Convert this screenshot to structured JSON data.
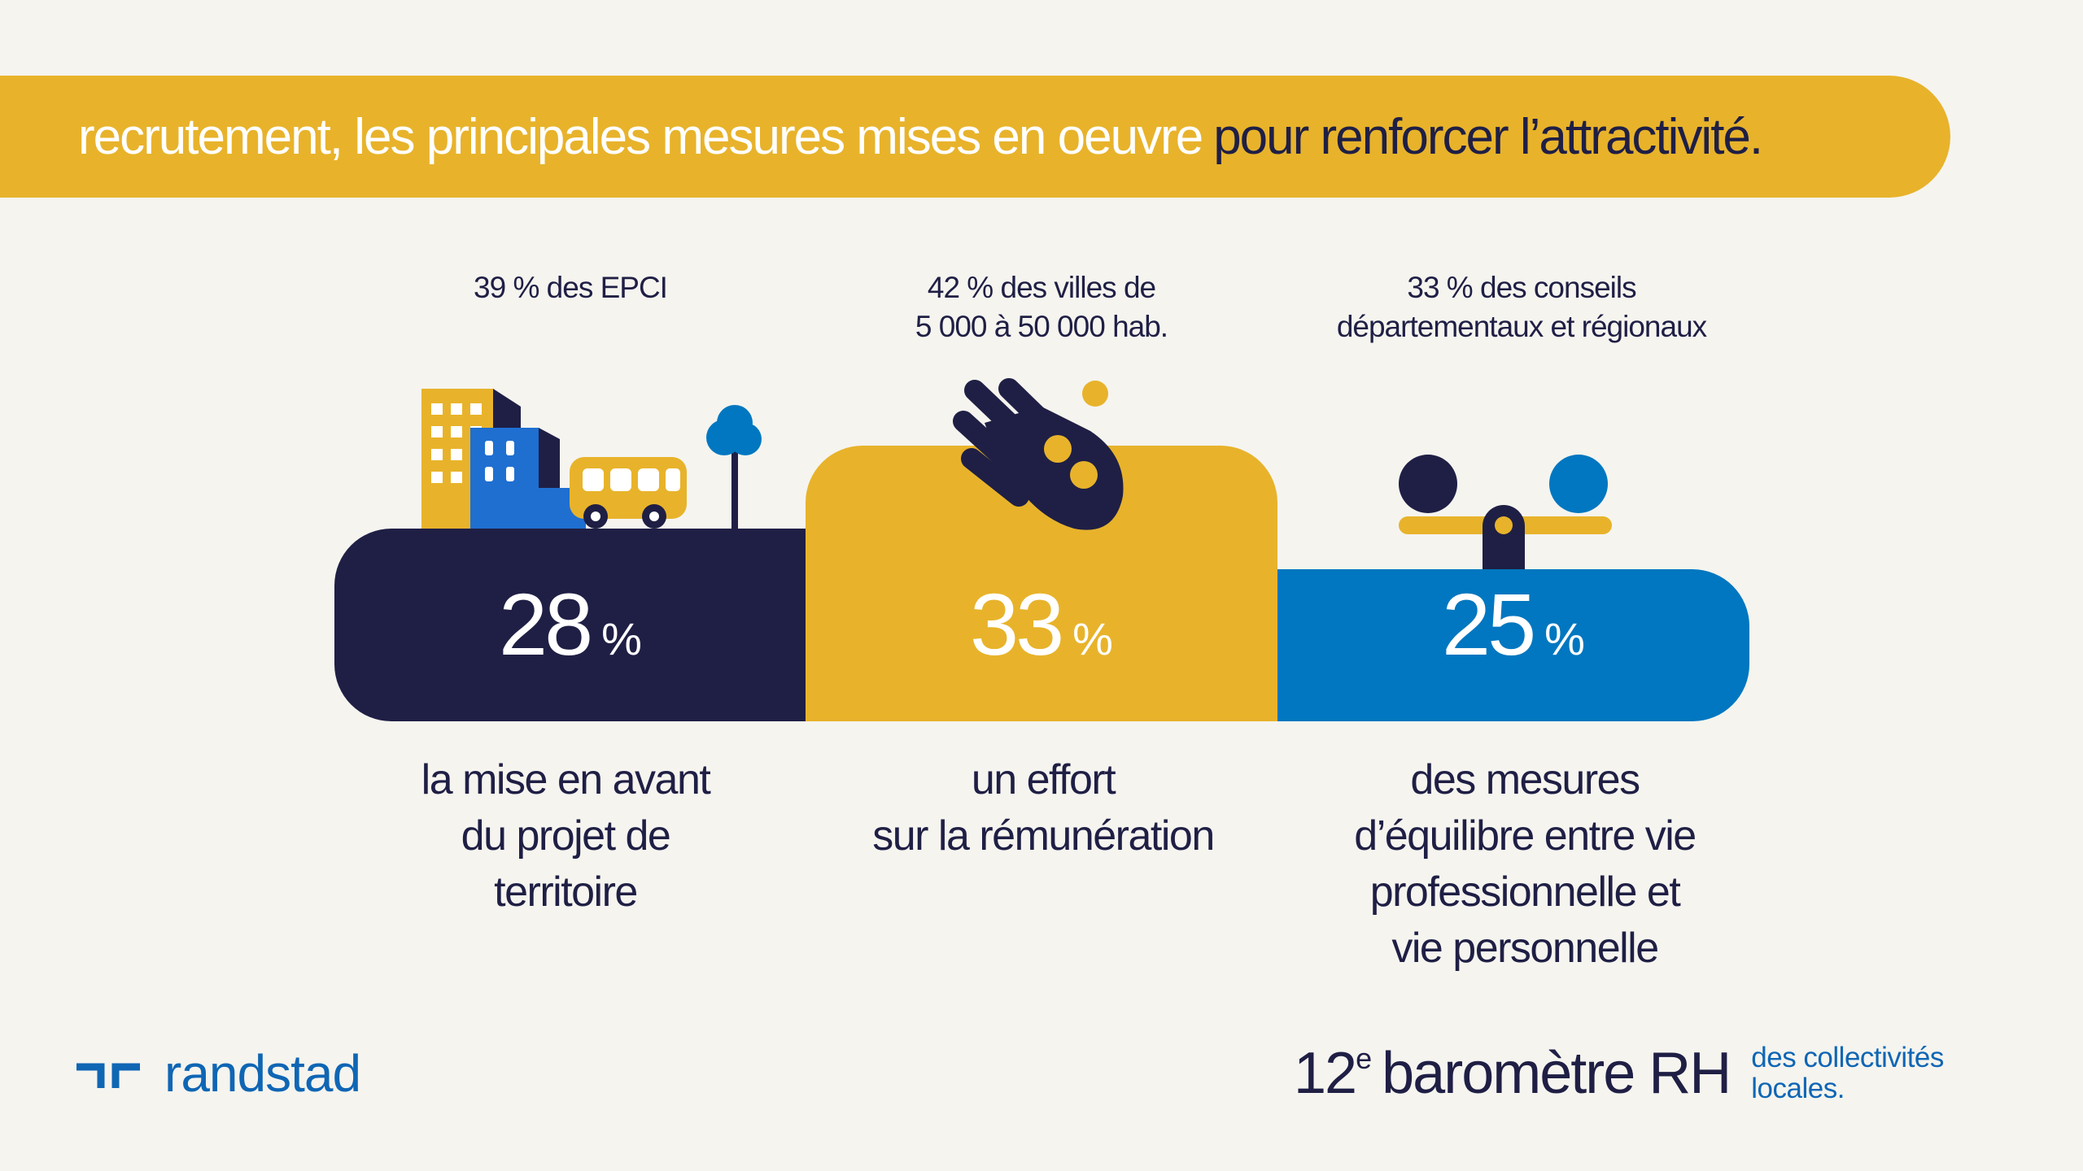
{
  "banner": {
    "text_light": "recrutement, les principales mesures mises en oeuvre",
    "text_dark": "pour renforcer l’attractivité."
  },
  "columns": [
    {
      "caption": [
        "39 % des EPCI"
      ],
      "value": "28",
      "unit": "%",
      "description": [
        "la mise en avant",
        "du projet de",
        "territoire"
      ],
      "color": "#1f1f45",
      "icon": "city-bus-icon"
    },
    {
      "caption": [
        "42 % des villes de",
        "5 000 à 50 000 hab."
      ],
      "value": "33",
      "unit": "%",
      "description": [
        "un effort",
        "sur la rémunération"
      ],
      "color": "#e8b32b",
      "icon": "hand-coins-icon"
    },
    {
      "caption": [
        "33 % des conseils",
        "départementaux et régionaux"
      ],
      "value": "25",
      "unit": "%",
      "description": [
        "des mesures",
        "d’équilibre entre vie",
        "professionnelle et",
        "vie personnelle"
      ],
      "color": "#0077c0",
      "icon": "balance-scale-icon"
    }
  ],
  "footer": {
    "brand": "randstad",
    "barometer_number": "12",
    "barometer_suffix": "e",
    "barometer_title": "baromètre RH",
    "barometer_sub": [
      "des collectivités",
      "locales."
    ]
  }
}
